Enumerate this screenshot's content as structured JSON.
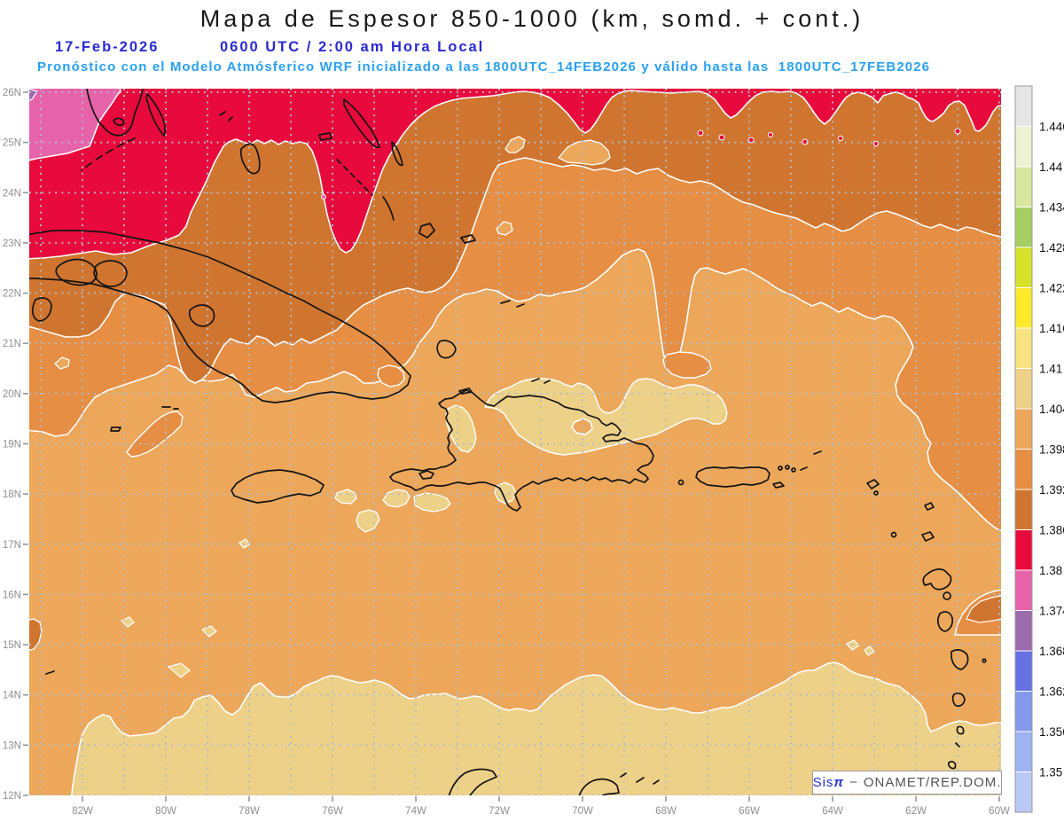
{
  "header": {
    "title": "Mapa de Espesor 850-1000 (km, somd. + cont.)",
    "date": "17-Feb-2026",
    "local_time": "0600 UTC / 2:00 am Hora Local",
    "forecast_note": "Pronóstico con el Modelo Atmósferico WRF inicializado a las 1800UTC_14FEB2026 y válido hasta las  1800UTC_17FEB2026"
  },
  "attribution": {
    "brand_prefix": "Sis",
    "brand_symbol": "π",
    "dash": "−",
    "source": "ONAMET/REP.DOM."
  },
  "axes": {
    "lat_labels": [
      "26N",
      "25N",
      "24N",
      "23N",
      "22N",
      "21N",
      "20N",
      "19N",
      "18N",
      "17N",
      "16N",
      "15N",
      "14N",
      "13N",
      "12N"
    ],
    "lon_labels": [
      "82W",
      "80W",
      "78W",
      "76W",
      "74W",
      "72W",
      "70W",
      "68W",
      "66W",
      "64W",
      "62W",
      "60W"
    ]
  },
  "colorbar": {
    "boundary_labels": [
      "1.446",
      "1.44",
      "1.434",
      "1.428",
      "1.422",
      "1.416",
      "1.41",
      "1.404",
      "1.398",
      "1.392",
      "1.386",
      "1.38",
      "1.374",
      "1.368",
      "1.362",
      "1.356",
      "1.35"
    ],
    "segment_colors_top_to_bottom": [
      "#e6e6e6",
      "#ecf2d2",
      "#d9e79d",
      "#a5ce63",
      "#d6e22a",
      "#fbe92a",
      "#f8e482",
      "#eed189",
      "#eca75a",
      "#e58e44",
      "#d0752f",
      "#e80a3c",
      "#e763a9",
      "#9c6bae",
      "#6671e4",
      "#8499ec",
      "#9eb3f2",
      "#bac9f6"
    ]
  },
  "palette": {
    "light": "#eca75a",
    "medium": "#e58e44",
    "dark": "#d0752f",
    "red": "#e80a3c",
    "pink": "#e763a9",
    "purple": "#9c6bae",
    "tan": "#eed189",
    "grid": "#aebecb",
    "axis_text": "#8f8f8f",
    "title_text": "#181818",
    "date_text": "#2a2ad2",
    "forecast_text": "#2aa0f2",
    "coast": "#141414",
    "boundary": "#ffffff",
    "brand_blue": "#2233cc",
    "attribution_text": "#555555"
  }
}
